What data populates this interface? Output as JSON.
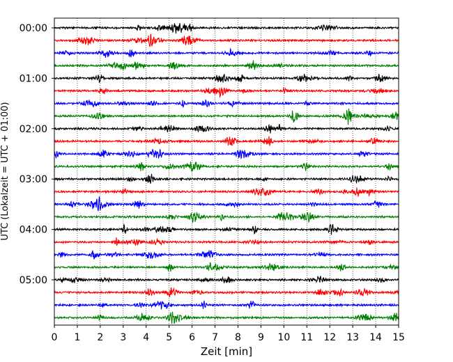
{
  "chart_data": {
    "type": "line",
    "title": "",
    "xlabel": "Zeit  [min]",
    "ylabel": "UTC (Lokalzeit = UTC + 01:00)",
    "xlim": [
      0,
      15
    ],
    "x_ticks": [
      0,
      1,
      2,
      3,
      4,
      5,
      6,
      7,
      8,
      9,
      10,
      11,
      12,
      13,
      14,
      15
    ],
    "y_tick_labels": [
      "00:00",
      "01:00",
      "02:00",
      "03:00",
      "04:00",
      "05:00"
    ],
    "y_tick_trace_index": [
      0,
      4,
      8,
      12,
      16,
      20
    ],
    "trace_count": 24,
    "trace_interval_minutes": 15,
    "trace_colors": [
      "#000000",
      "#ff0000",
      "#0000ff",
      "#007f00"
    ],
    "grid": "vertical dotted",
    "legend": "none"
  }
}
